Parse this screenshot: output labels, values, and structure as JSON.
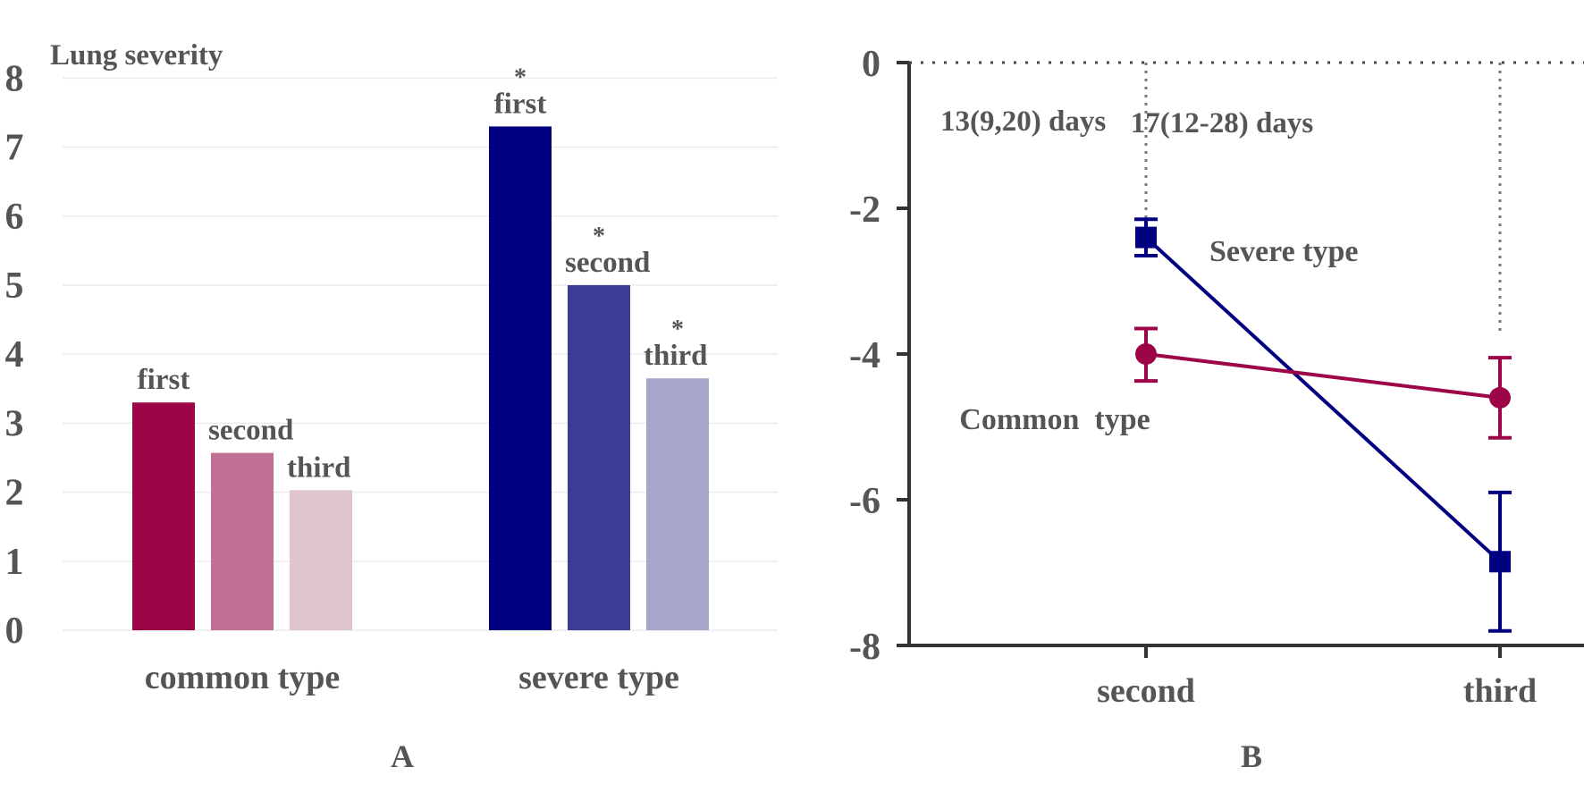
{
  "chart_data": [
    {
      "type": "bar",
      "panel_label": "A",
      "ylabel": "Lung severity",
      "ylim": [
        0,
        8
      ],
      "yticks": [
        "0",
        "1",
        "2",
        "3",
        "4",
        "5",
        "6",
        "7",
        "8"
      ],
      "categories": [
        "common type",
        "severe type"
      ],
      "series": [
        {
          "name": "first",
          "values": [
            3.3,
            7.3
          ],
          "marks": [
            "",
            "*"
          ]
        },
        {
          "name": "second",
          "values": [
            2.57,
            5.0
          ],
          "marks": [
            "",
            "*"
          ]
        },
        {
          "name": "third",
          "values": [
            2.03,
            3.65
          ],
          "marks": [
            "",
            "*"
          ]
        }
      ],
      "colors": {
        "common type": [
          "#9e0548",
          "#c07095",
          "#dec5d0"
        ],
        "severe type": [
          "#000080",
          "#3b3c96",
          "#a6a6ca"
        ]
      },
      "grid": true
    },
    {
      "type": "line",
      "panel_label": "B",
      "ylim": [
        -8,
        0
      ],
      "yticks": [
        "0",
        "-2",
        "-4",
        "-6",
        "-8"
      ],
      "categories": [
        "second",
        "third"
      ],
      "series": [
        {
          "name": "Severe type",
          "values": [
            -2.4,
            -6.85
          ],
          "err_low": [
            -2.65,
            -7.8
          ],
          "err_high": [
            -2.15,
            -5.9
          ],
          "marker": "square",
          "color": "#000080"
        },
        {
          "name": "Common  type",
          "values": [
            -4.0,
            -4.6
          ],
          "err_low": [
            -4.37,
            -5.15
          ],
          "err_high": [
            -3.65,
            -4.05
          ],
          "marker": "circle",
          "color": "#9e0548"
        }
      ],
      "annotations": [
        "13(9,20) days",
        "17(12-28) days"
      ]
    }
  ]
}
